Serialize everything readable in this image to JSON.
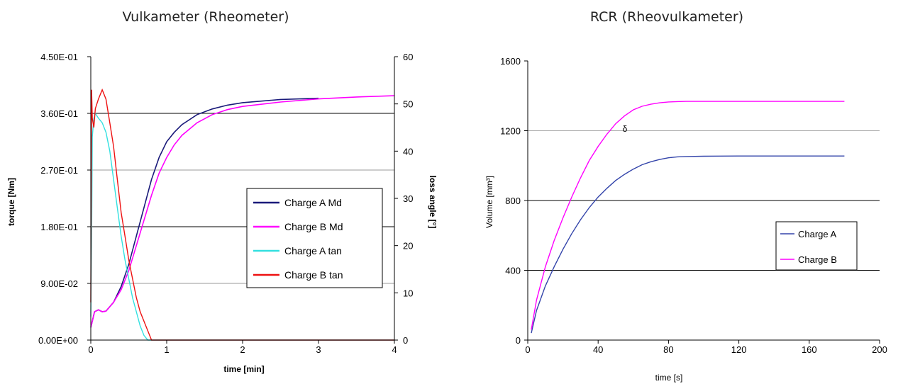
{
  "chart_data": [
    {
      "type": "line",
      "title": "Vulkameter (Rheometer)",
      "xlabel": "time [min]",
      "ylabel": "torque [Nm]",
      "y2label": "loss angle [°]",
      "xlim": [
        0,
        4
      ],
      "ylim": [
        0,
        0.45
      ],
      "y2lim": [
        0,
        60
      ],
      "x_ticks": [
        "0",
        "1",
        "2",
        "3",
        "4"
      ],
      "y_ticks": [
        "0.00E+00",
        "9.00E-02",
        "1.80E-01",
        "2.70E-01",
        "3.60E-01",
        "4.50E-01"
      ],
      "y2_ticks": [
        "0",
        "10",
        "20",
        "30",
        "40",
        "50",
        "60"
      ],
      "grid": true,
      "legend_position": "center-right",
      "series": [
        {
          "name": "Charge A Md",
          "color": "#1a1a7a",
          "axis": "left",
          "x": [
            0,
            0.05,
            0.1,
            0.15,
            0.2,
            0.3,
            0.4,
            0.5,
            0.6,
            0.7,
            0.8,
            0.9,
            1.0,
            1.1,
            1.2,
            1.4,
            1.6,
            1.8,
            2.0,
            2.5,
            3.0
          ],
          "values": [
            0.02,
            0.045,
            0.048,
            0.045,
            0.046,
            0.06,
            0.085,
            0.12,
            0.165,
            0.21,
            0.255,
            0.29,
            0.315,
            0.33,
            0.342,
            0.358,
            0.367,
            0.373,
            0.377,
            0.382,
            0.384
          ]
        },
        {
          "name": "Charge B Md",
          "color": "#ff00ff",
          "axis": "left",
          "x": [
            0,
            0.05,
            0.1,
            0.15,
            0.2,
            0.3,
            0.4,
            0.5,
            0.6,
            0.7,
            0.8,
            0.9,
            1.0,
            1.1,
            1.2,
            1.4,
            1.6,
            1.8,
            2.0,
            2.5,
            3.0,
            3.5,
            4.0
          ],
          "values": [
            0.02,
            0.045,
            0.048,
            0.045,
            0.046,
            0.06,
            0.08,
            0.11,
            0.15,
            0.19,
            0.23,
            0.265,
            0.29,
            0.31,
            0.325,
            0.345,
            0.358,
            0.366,
            0.371,
            0.378,
            0.383,
            0.386,
            0.388
          ]
        },
        {
          "name": "Charge A tan",
          "color": "#33e0e0",
          "axis": "right",
          "x": [
            0,
            0.01,
            0.02,
            0.04,
            0.06,
            0.1,
            0.15,
            0.2,
            0.25,
            0.3,
            0.35,
            0.4,
            0.45,
            0.5,
            0.55,
            0.6,
            0.65,
            0.7,
            0.75,
            0.8,
            4.0
          ],
          "values": [
            5,
            20,
            43,
            47,
            48,
            47,
            46,
            44,
            40,
            34,
            28,
            22,
            17,
            13,
            9,
            6,
            3,
            1,
            0,
            0,
            0
          ]
        },
        {
          "name": "Charge B tan",
          "color": "#ee1111",
          "axis": "right",
          "x": [
            0,
            0.01,
            0.02,
            0.04,
            0.06,
            0.1,
            0.15,
            0.2,
            0.25,
            0.3,
            0.35,
            0.4,
            0.45,
            0.5,
            0.55,
            0.6,
            0.65,
            0.7,
            0.75,
            0.8,
            0.85,
            4.0
          ],
          "values": [
            8,
            53,
            47,
            45,
            49,
            51,
            53,
            51,
            46,
            41,
            34,
            27,
            22,
            17,
            13,
            9,
            6,
            4,
            2,
            0,
            0,
            0
          ]
        }
      ]
    },
    {
      "type": "line",
      "title": "RCR (Rheovulkameter)",
      "xlabel": "time [s]",
      "ylabel": "Volume [mm³]",
      "xlim": [
        0,
        200
      ],
      "ylim": [
        0,
        1600
      ],
      "x_ticks": [
        "0",
        "40",
        "80",
        "120",
        "160",
        "200"
      ],
      "y_ticks": [
        "0",
        "400",
        "800",
        "1200",
        "1600"
      ],
      "grid": true,
      "legend_position": "center-right",
      "annotation": "δ",
      "series": [
        {
          "name": "Charge A",
          "color": "#3344aa",
          "x": [
            2,
            5,
            10,
            15,
            20,
            25,
            30,
            35,
            40,
            45,
            50,
            55,
            60,
            65,
            70,
            75,
            80,
            85,
            90,
            100,
            120,
            140,
            160,
            180
          ],
          "values": [
            40,
            170,
            310,
            420,
            520,
            610,
            690,
            760,
            820,
            870,
            915,
            950,
            980,
            1005,
            1022,
            1035,
            1045,
            1050,
            1052,
            1054,
            1055,
            1055,
            1055,
            1055
          ]
        },
        {
          "name": "Charge B",
          "color": "#ff00ff",
          "x": [
            2,
            5,
            10,
            15,
            20,
            25,
            30,
            35,
            40,
            45,
            50,
            55,
            60,
            65,
            70,
            75,
            80,
            85,
            90,
            100,
            120,
            140,
            160,
            180
          ],
          "values": [
            60,
            230,
            420,
            570,
            700,
            820,
            930,
            1030,
            1110,
            1180,
            1240,
            1285,
            1320,
            1340,
            1352,
            1360,
            1365,
            1367,
            1368,
            1368,
            1368,
            1368,
            1368,
            1368
          ]
        }
      ]
    }
  ]
}
